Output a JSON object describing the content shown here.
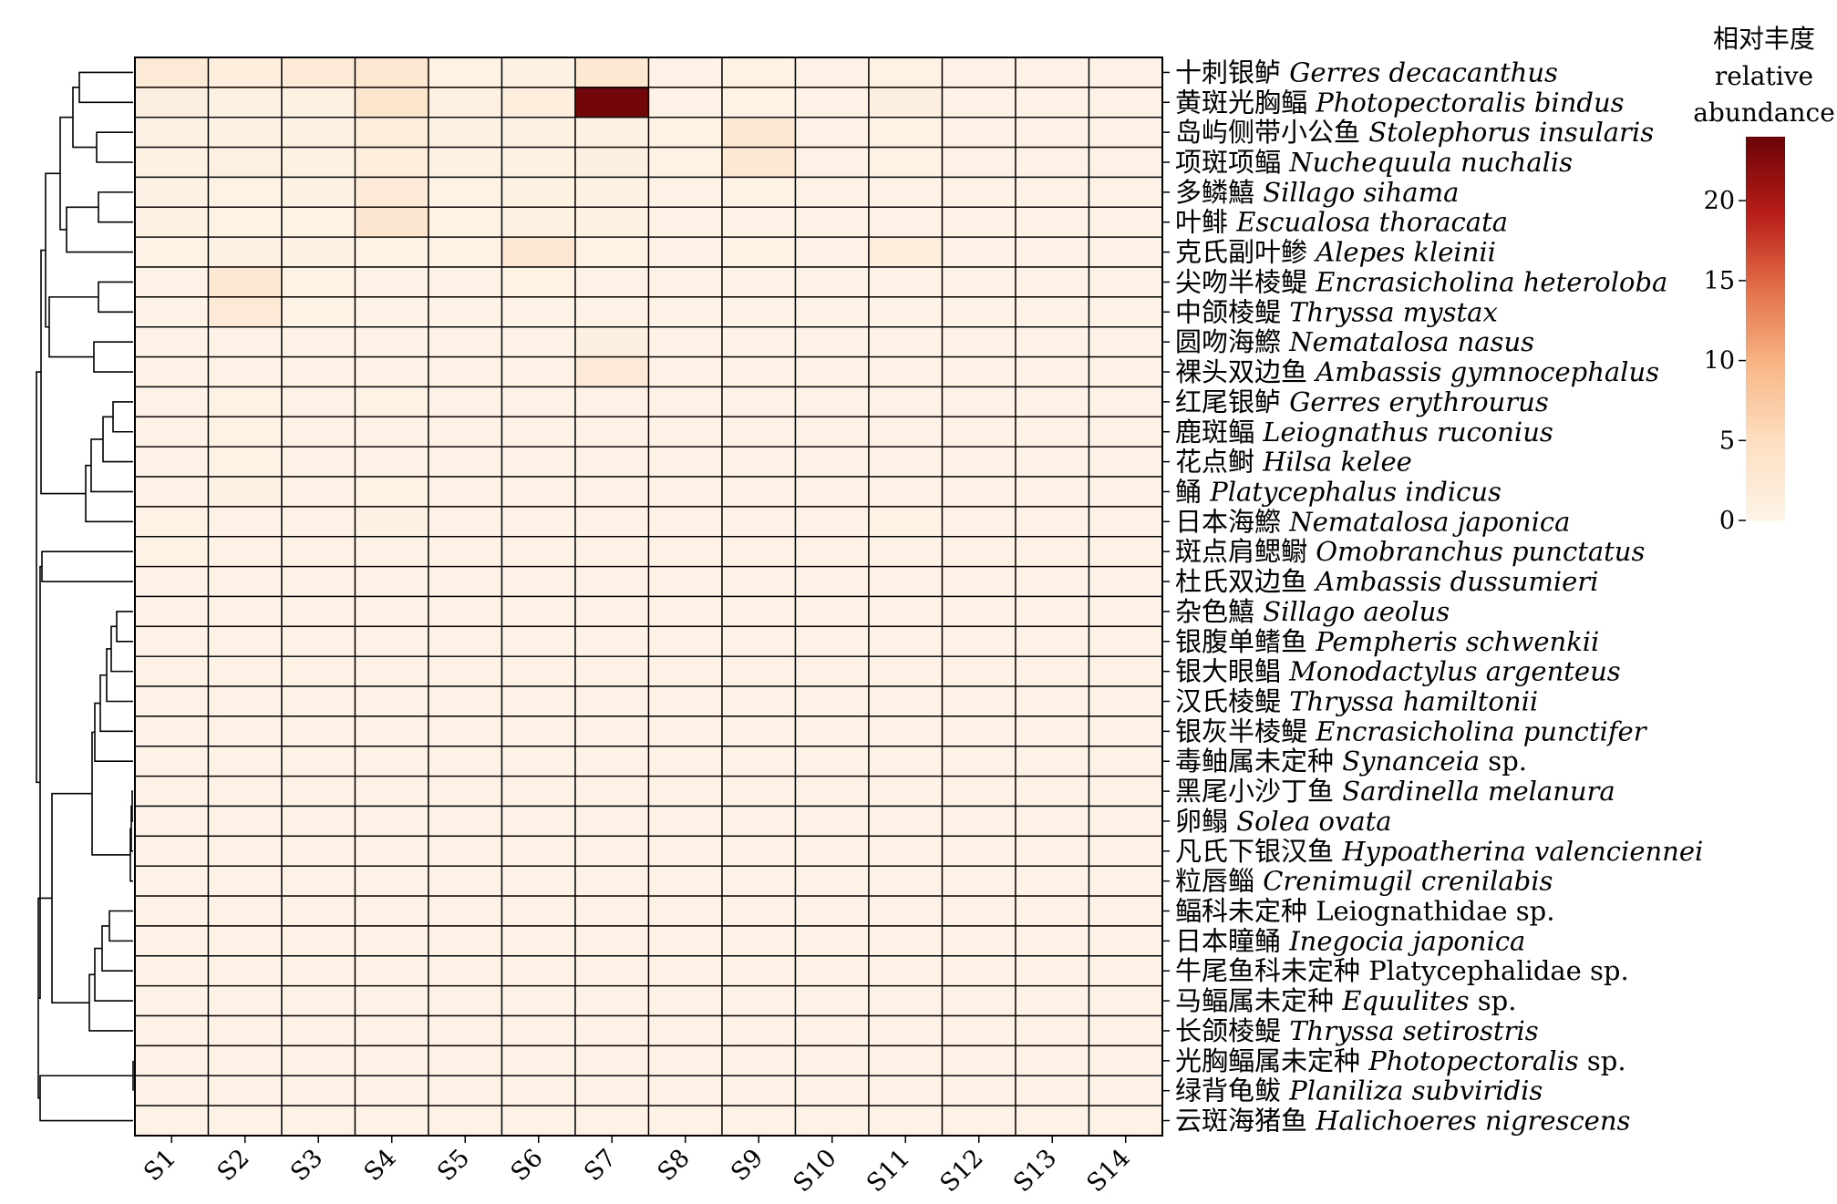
{
  "chart_data": {
    "type": "heatmap",
    "title": "",
    "columns": [
      "S1",
      "S2",
      "S3",
      "S4",
      "S5",
      "S6",
      "S7",
      "S8",
      "S9",
      "S10",
      "S11",
      "S12",
      "S13",
      "S14"
    ],
    "rows": [
      {
        "cn": "十刺银鲈",
        "latin": [
          {
            "t": "Gerres decacanthus",
            "i": true
          }
        ]
      },
      {
        "cn": "黄斑光胸鲾",
        "latin": [
          {
            "t": "Photopectoralis bindus",
            "i": true
          }
        ]
      },
      {
        "cn": "岛屿侧带小公鱼",
        "latin": [
          {
            "t": "Stolephorus insularis",
            "i": true
          }
        ]
      },
      {
        "cn": "项斑项鲾",
        "latin": [
          {
            "t": "Nuchequula nuchalis",
            "i": true
          }
        ]
      },
      {
        "cn": "多鳞鱚",
        "latin": [
          {
            "t": "Sillago sihama",
            "i": true
          }
        ]
      },
      {
        "cn": "叶鲱",
        "latin": [
          {
            "t": "Escualosa thoracata",
            "i": true
          }
        ]
      },
      {
        "cn": "克氏副叶鲹",
        "latin": [
          {
            "t": "Alepes kleinii",
            "i": true
          }
        ]
      },
      {
        "cn": "尖吻半棱鳀",
        "latin": [
          {
            "t": "Encrasicholina heteroloba",
            "i": true
          }
        ]
      },
      {
        "cn": "中颌棱鳀",
        "latin": [
          {
            "t": "Thryssa mystax",
            "i": true
          }
        ]
      },
      {
        "cn": "圆吻海鰶",
        "latin": [
          {
            "t": "Nematalosa nasus",
            "i": true
          }
        ]
      },
      {
        "cn": "裸头双边鱼",
        "latin": [
          {
            "t": "Ambassis gymnocephalus",
            "i": true
          }
        ]
      },
      {
        "cn": "红尾银鲈",
        "latin": [
          {
            "t": "Gerres erythrourus",
            "i": true
          }
        ]
      },
      {
        "cn": "鹿斑鲾",
        "latin": [
          {
            "t": "Leiognathus ruconius",
            "i": true
          }
        ]
      },
      {
        "cn": "花点鲥",
        "latin": [
          {
            "t": "Hilsa kelee",
            "i": true
          }
        ]
      },
      {
        "cn": "鲬",
        "latin": [
          {
            "t": "Platycephalus indicus",
            "i": true
          }
        ]
      },
      {
        "cn": "日本海鰶",
        "latin": [
          {
            "t": "Nematalosa japonica",
            "i": true
          }
        ]
      },
      {
        "cn": "斑点肩鳃鳚",
        "latin": [
          {
            "t": "Omobranchus punctatus",
            "i": true
          }
        ]
      },
      {
        "cn": "杜氏双边鱼",
        "latin": [
          {
            "t": "Ambassis dussumieri",
            "i": true
          }
        ]
      },
      {
        "cn": "杂色鱚",
        "latin": [
          {
            "t": "Sillago aeolus",
            "i": true
          }
        ]
      },
      {
        "cn": "银腹单鳍鱼",
        "latin": [
          {
            "t": "Pempheris schwenkii",
            "i": true
          }
        ]
      },
      {
        "cn": "银大眼鲳",
        "latin": [
          {
            "t": "Monodactylus argenteus",
            "i": true
          }
        ]
      },
      {
        "cn": "汉氏棱鳀",
        "latin": [
          {
            "t": "Thryssa hamiltonii",
            "i": true
          }
        ]
      },
      {
        "cn": "银灰半棱鳀",
        "latin": [
          {
            "t": "Encrasicholina punctifer",
            "i": true
          }
        ]
      },
      {
        "cn": "毒鲉属未定种",
        "latin": [
          {
            "t": "Synanceia",
            "i": true
          },
          {
            "t": " sp.",
            "i": false
          }
        ]
      },
      {
        "cn": "黑尾小沙丁鱼",
        "latin": [
          {
            "t": "Sardinella melanura",
            "i": true
          }
        ]
      },
      {
        "cn": "卵鳎",
        "latin": [
          {
            "t": "Solea ovata",
            "i": true
          }
        ]
      },
      {
        "cn": "凡氏下银汉鱼",
        "latin": [
          {
            "t": "Hypoatherina valenciennei",
            "i": true
          }
        ]
      },
      {
        "cn": "粒唇鲻",
        "latin": [
          {
            "t": "Crenimugil crenilabis",
            "i": true
          }
        ]
      },
      {
        "cn": "鲾科未定种",
        "latin": [
          {
            "t": "Leiognathidae sp.",
            "i": false
          }
        ]
      },
      {
        "cn": "日本瞳鲬",
        "latin": [
          {
            "t": "Inegocia japonica",
            "i": true
          }
        ]
      },
      {
        "cn": "牛尾鱼科未定种",
        "latin": [
          {
            "t": "Platycephalidae sp.",
            "i": false
          }
        ]
      },
      {
        "cn": "马鲾属未定种",
        "latin": [
          {
            "t": "Equulites",
            "i": true
          },
          {
            "t": " sp.",
            "i": false
          }
        ]
      },
      {
        "cn": "长颌棱鳀",
        "latin": [
          {
            "t": "Thryssa setirostris",
            "i": true
          }
        ]
      },
      {
        "cn": "光胸鲾属未定种",
        "latin": [
          {
            "t": "Photopectoralis",
            "i": true
          },
          {
            "t": " sp.",
            "i": false
          }
        ]
      },
      {
        "cn": "绿背龟鲅",
        "latin": [
          {
            "t": "Planiliza subviridis",
            "i": true
          }
        ]
      },
      {
        "cn": "云斑海猪鱼",
        "latin": [
          {
            "t": "Halichoeres nigrescens",
            "i": true
          }
        ]
      }
    ],
    "values": [
      [
        2.2,
        1.2,
        2.0,
        3.0,
        0.3,
        0.4,
        2.7,
        0.2,
        0.3,
        0.2,
        0.3,
        0.2,
        0.2,
        0.2
      ],
      [
        0.9,
        0.4,
        0.5,
        3.5,
        0.8,
        1.2,
        23.5,
        0.2,
        0.3,
        0.2,
        1.0,
        0.2,
        0.2,
        0.2
      ],
      [
        0.4,
        0.5,
        0.6,
        1.5,
        0.4,
        0.6,
        0.6,
        0.3,
        2.8,
        0.2,
        0.3,
        0.2,
        0.2,
        0.2
      ],
      [
        0.5,
        0.7,
        0.6,
        1.2,
        0.4,
        0.5,
        1.0,
        0.3,
        2.7,
        0.2,
        0.3,
        0.2,
        0.2,
        0.2
      ],
      [
        0.4,
        0.3,
        0.4,
        1.9,
        0.3,
        0.5,
        0.4,
        0.2,
        0.3,
        0.2,
        0.2,
        0.2,
        0.2,
        0.2
      ],
      [
        0.4,
        0.3,
        0.3,
        3.2,
        0.3,
        0.6,
        0.6,
        0.2,
        0.2,
        0.2,
        0.2,
        0.2,
        0.2,
        0.2
      ],
      [
        0.3,
        0.4,
        0.5,
        0.3,
        0.3,
        3.0,
        0.3,
        0.2,
        0.3,
        0.2,
        1.5,
        0.2,
        0.2,
        0.2
      ],
      [
        0.2,
        2.8,
        0.3,
        0.2,
        0.2,
        0.3,
        0.2,
        0.2,
        0.2,
        0.2,
        0.2,
        0.2,
        0.2,
        0.2
      ],
      [
        0.2,
        2.2,
        0.3,
        0.2,
        0.2,
        0.2,
        0.2,
        0.2,
        0.2,
        0.2,
        0.2,
        0.2,
        0.2,
        0.2
      ],
      [
        0.2,
        0.2,
        0.2,
        0.2,
        0.2,
        0.2,
        1.0,
        0.2,
        0.2,
        0.2,
        0.2,
        0.2,
        0.2,
        0.2
      ],
      [
        0.2,
        0.2,
        0.2,
        0.2,
        0.2,
        0.2,
        2.2,
        0.2,
        0.2,
        0.2,
        0.2,
        0.2,
        0.2,
        0.2
      ],
      [
        0.2,
        0.3,
        0.2,
        0.3,
        0.2,
        0.2,
        0.2,
        0.2,
        0.2,
        0.2,
        0.2,
        0.2,
        0.2,
        0.2
      ],
      [
        0.2,
        0.3,
        0.2,
        0.2,
        0.2,
        0.2,
        0.2,
        0.2,
        0.2,
        0.2,
        0.2,
        0.2,
        0.2,
        0.2
      ],
      [
        0.2,
        0.3,
        0.2,
        0.2,
        0.2,
        0.2,
        0.2,
        0.2,
        0.2,
        0.2,
        0.2,
        0.2,
        0.2,
        0.2
      ],
      [
        0.2,
        0.4,
        0.2,
        0.3,
        0.2,
        0.2,
        0.2,
        0.2,
        0.2,
        0.2,
        0.2,
        0.2,
        0.2,
        0.2
      ],
      [
        0.3,
        0.2,
        0.2,
        0.4,
        0.2,
        0.2,
        0.2,
        0.2,
        0.2,
        0.2,
        0.3,
        0.2,
        0.2,
        0.2
      ],
      [
        0.3,
        0.2,
        0.2,
        0.2,
        0.2,
        0.2,
        0.2,
        0.2,
        0.2,
        0.2,
        0.2,
        0.2,
        0.2,
        0.2
      ],
      [
        0.2,
        0.2,
        0.2,
        0.2,
        0.2,
        0.2,
        0.2,
        0.2,
        0.2,
        0.2,
        0.2,
        0.2,
        0.2,
        0.2
      ],
      [
        0.2,
        0.2,
        0.2,
        0.2,
        0.2,
        0.2,
        0.2,
        0.2,
        0.2,
        0.2,
        0.2,
        0.2,
        0.2,
        0.2
      ],
      [
        0.2,
        0.2,
        0.2,
        0.2,
        0.2,
        0.2,
        0.2,
        0.2,
        0.2,
        0.2,
        0.2,
        0.2,
        0.2,
        0.2
      ],
      [
        0.2,
        0.2,
        0.2,
        0.2,
        0.2,
        0.2,
        0.2,
        0.2,
        0.2,
        0.2,
        0.2,
        0.2,
        0.2,
        0.2
      ],
      [
        0.2,
        0.2,
        0.2,
        0.2,
        0.2,
        0.2,
        0.2,
        0.2,
        0.2,
        0.2,
        0.2,
        0.2,
        0.2,
        0.2
      ],
      [
        0.2,
        0.2,
        0.2,
        0.2,
        0.2,
        0.2,
        0.2,
        0.2,
        0.2,
        0.2,
        0.2,
        0.2,
        0.2,
        0.2
      ],
      [
        0.2,
        0.2,
        0.2,
        0.2,
        0.2,
        0.2,
        0.2,
        0.2,
        0.2,
        0.2,
        0.2,
        0.2,
        0.2,
        0.2
      ],
      [
        0.2,
        0.2,
        0.2,
        0.2,
        0.2,
        0.2,
        0.2,
        0.2,
        0.2,
        0.2,
        0.2,
        0.2,
        0.2,
        0.2
      ],
      [
        0.2,
        0.2,
        0.2,
        0.2,
        0.2,
        0.2,
        0.2,
        0.2,
        0.2,
        0.2,
        0.2,
        0.2,
        0.2,
        0.2
      ],
      [
        0.2,
        0.2,
        0.2,
        0.2,
        0.2,
        0.2,
        0.2,
        0.2,
        0.2,
        0.2,
        0.2,
        0.2,
        0.2,
        0.2
      ],
      [
        0.2,
        0.2,
        0.2,
        0.2,
        0.2,
        0.2,
        0.2,
        0.2,
        0.2,
        0.2,
        0.2,
        0.2,
        0.2,
        0.2
      ],
      [
        0.2,
        0.2,
        0.2,
        0.2,
        0.2,
        0.2,
        0.2,
        0.2,
        0.2,
        0.2,
        0.2,
        0.2,
        0.2,
        0.2
      ],
      [
        0.2,
        0.2,
        0.2,
        0.2,
        0.2,
        0.2,
        0.2,
        0.2,
        0.2,
        0.2,
        0.2,
        0.2,
        0.2,
        0.2
      ],
      [
        0.2,
        0.2,
        0.2,
        0.2,
        0.2,
        0.2,
        0.2,
        0.2,
        0.2,
        0.2,
        0.2,
        0.2,
        0.2,
        0.2
      ],
      [
        0.2,
        0.2,
        0.2,
        0.2,
        0.2,
        0.2,
        0.2,
        0.2,
        0.2,
        0.2,
        0.2,
        0.2,
        0.2,
        0.2
      ],
      [
        0.2,
        0.2,
        0.2,
        0.2,
        0.2,
        0.2,
        0.2,
        0.2,
        0.2,
        0.2,
        0.2,
        0.2,
        0.2,
        0.2
      ],
      [
        0.2,
        0.2,
        0.2,
        0.2,
        0.2,
        0.2,
        0.2,
        0.2,
        0.2,
        0.2,
        0.2,
        0.2,
        0.2,
        0.2
      ],
      [
        0.2,
        0.2,
        0.2,
        0.2,
        0.2,
        0.2,
        0.2,
        0.2,
        0.2,
        0.2,
        0.2,
        0.2,
        0.2,
        0.2
      ],
      [
        0.2,
        0.2,
        0.2,
        0.2,
        0.2,
        0.2,
        0.2,
        0.2,
        0.2,
        0.2,
        0.2,
        0.2,
        0.2,
        0.2
      ]
    ],
    "colorbar": {
      "title_cn": "相对丰度",
      "title_en": [
        "relative",
        "abundance"
      ],
      "range": [
        0,
        24
      ],
      "ticks": [
        0,
        5,
        10,
        15,
        20
      ],
      "colors": [
        "#fdf3e6",
        "#fde0c3",
        "#f8b888",
        "#e4714a",
        "#b81d18",
        "#6b0307"
      ]
    },
    "dendrogram": {
      "orientation": "left",
      "shown": true
    },
    "grid": true
  }
}
